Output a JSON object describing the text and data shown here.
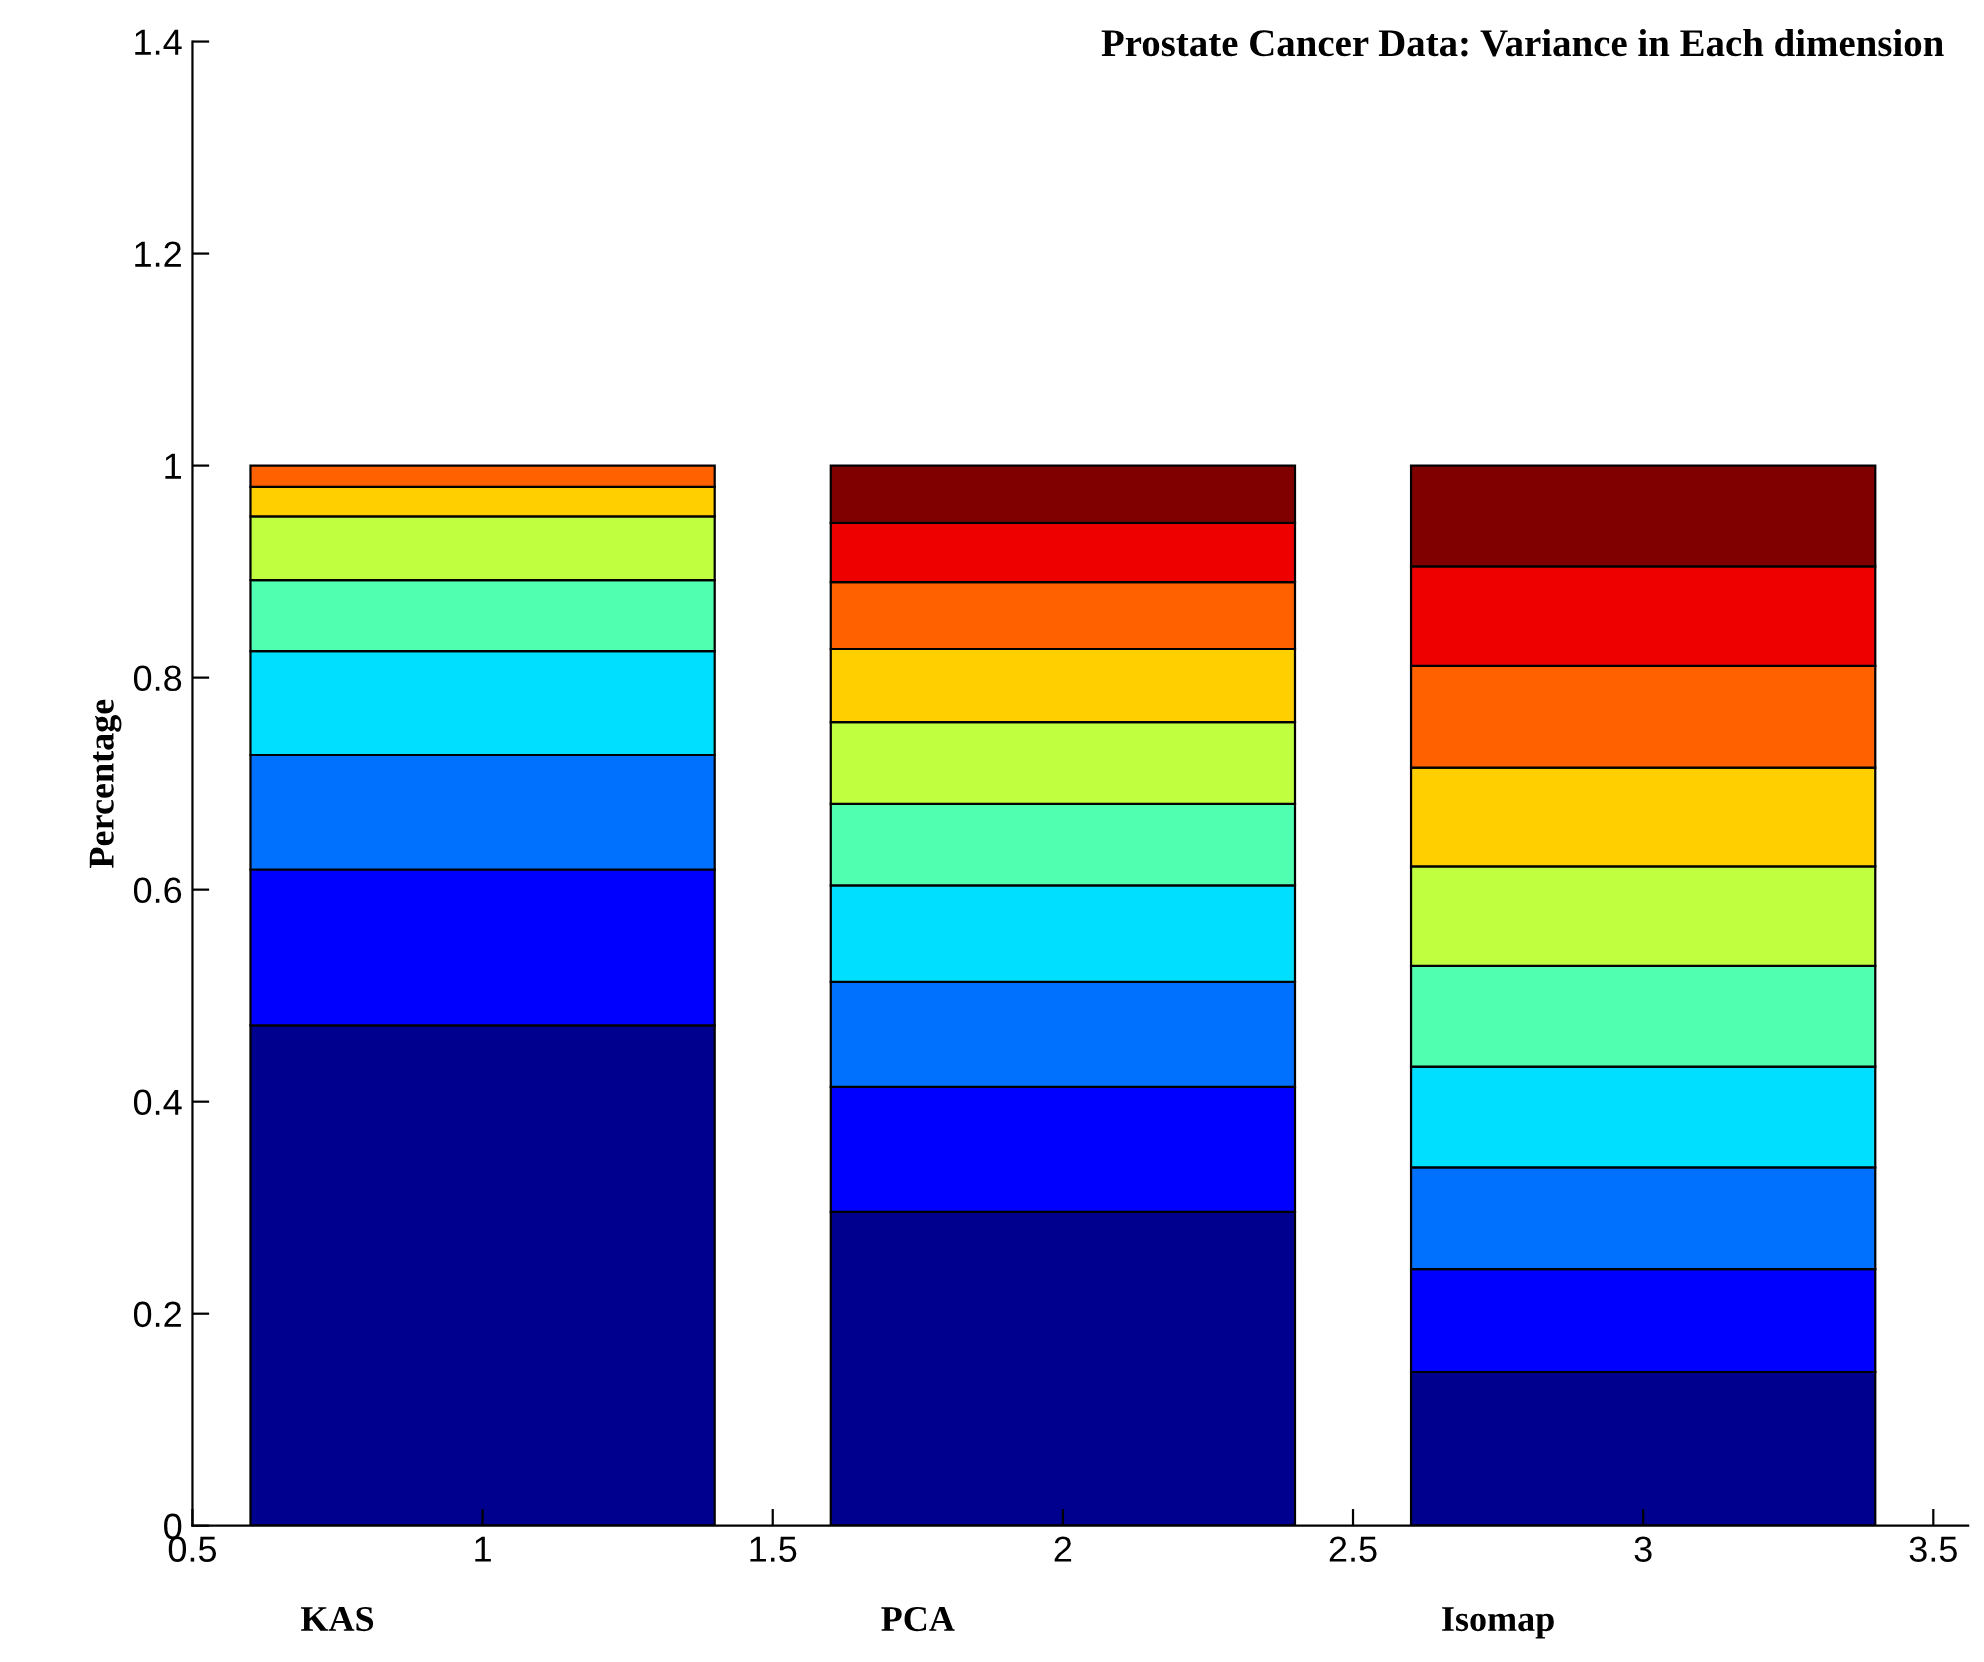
{
  "chart_data": {
    "type": "bar",
    "stacked": true,
    "title": "Prostate Cancer Data: Variance in Each dimension",
    "ylabel": "Percentage",
    "x": [
      1,
      2,
      3
    ],
    "series": [
      {
        "color": "#00008f",
        "values": [
          0.472,
          0.296,
          0.145
        ]
      },
      {
        "color": "#0000ff",
        "values": [
          0.147,
          0.118,
          0.097
        ]
      },
      {
        "color": "#0070ff",
        "values": [
          0.108,
          0.099,
          0.096
        ]
      },
      {
        "color": "#00dfff",
        "values": [
          0.098,
          0.091,
          0.095
        ]
      },
      {
        "color": "#50ffaf",
        "values": [
          0.067,
          0.077,
          0.095
        ]
      },
      {
        "color": "#bfff40",
        "values": [
          0.06,
          0.077,
          0.094
        ]
      },
      {
        "color": "#ffcf00",
        "values": [
          0.028,
          0.069,
          0.093
        ]
      },
      {
        "color": "#ff6000",
        "values": [
          0.02,
          0.063,
          0.096
        ]
      },
      {
        "color": "#ef0000",
        "values": [
          null,
          0.056,
          0.094
        ]
      },
      {
        "color": "#800000",
        "values": [
          null,
          0.054,
          0.095
        ]
      }
    ],
    "xlim": [
      0.5,
      3.56
    ],
    "xticks": [
      0.5,
      1,
      1.5,
      2,
      2.5,
      3,
      3.5
    ],
    "ylim": [
      0,
      1.4
    ],
    "yticks": [
      0,
      0.2,
      0.4,
      0.6,
      0.8,
      1,
      1.2,
      1.4
    ],
    "annotations": [
      "KAS",
      "PCA",
      "Isomap"
    ],
    "grid": false
  }
}
